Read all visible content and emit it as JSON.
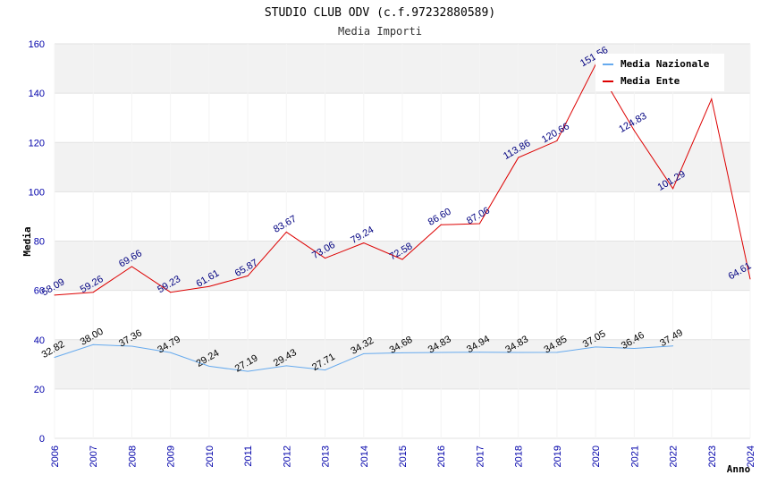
{
  "chart_data": {
    "type": "line",
    "title": "STUDIO CLUB ODV (c.f.97232880589)",
    "subtitle": "Media Importi",
    "xlabel": "Anno",
    "ylabel": "Media",
    "ylim": [
      0,
      160
    ],
    "yticks": [
      0,
      20,
      40,
      60,
      80,
      100,
      120,
      140,
      160
    ],
    "x": [
      "2006",
      "2007",
      "2008",
      "2009",
      "2010",
      "2011",
      "2012",
      "2013",
      "2014",
      "2015",
      "2016",
      "2017",
      "2018",
      "2019",
      "2020",
      "2021",
      "2022",
      "2023",
      "2024"
    ],
    "grid": true,
    "legend_position": "top-right",
    "series": [
      {
        "name": "Media Nazionale",
        "color": "#66aaee",
        "label_color": "#000000",
        "values": [
          32.82,
          38.0,
          37.36,
          34.79,
          29.24,
          27.19,
          29.43,
          27.71,
          34.32,
          34.68,
          34.83,
          34.94,
          34.83,
          34.85,
          37.05,
          36.46,
          37.49,
          null,
          null
        ],
        "labels": [
          "32.82",
          "38.00",
          "37.36",
          "34.79",
          "29.24",
          "27.19",
          "29.43",
          "27.71",
          "34.32",
          "34.68",
          "34.83",
          "34.94",
          "34.83",
          "34.85",
          "37.05",
          "36.46",
          "37.49",
          "",
          ""
        ]
      },
      {
        "name": "Media Ente",
        "color": "#dd0000",
        "label_color": "#000080",
        "values": [
          58.09,
          59.26,
          69.66,
          59.23,
          61.61,
          65.87,
          83.67,
          73.06,
          79.24,
          72.58,
          86.6,
          87.06,
          113.86,
          120.66,
          151.56,
          124.83,
          101.29,
          137.6,
          64.61
        ],
        "labels": [
          "58.09",
          "59.26",
          "69.66",
          "59.23",
          "61.61",
          "65.87",
          "83.67",
          "73.06",
          "79.24",
          "72.58",
          "86.60",
          "87.06",
          "113.86",
          "120.66",
          "151.56",
          "124.83",
          "101.29",
          "",
          "64.61"
        ]
      }
    ]
  }
}
